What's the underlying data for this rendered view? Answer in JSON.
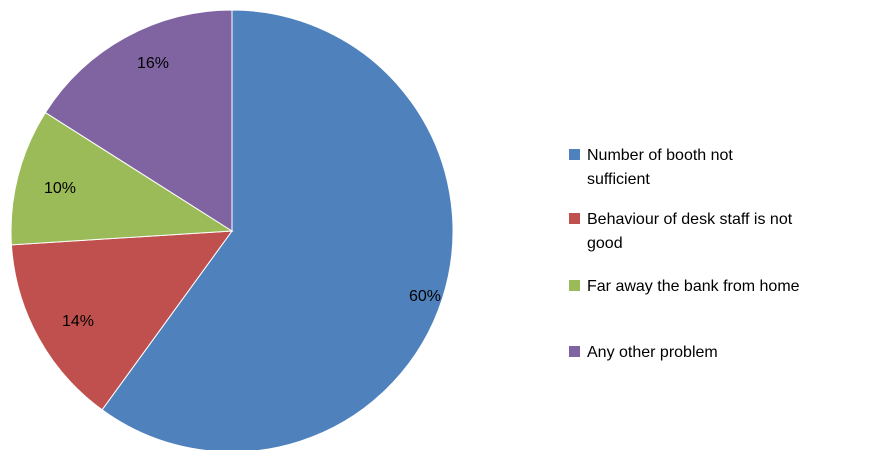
{
  "chart_data": {
    "type": "pie",
    "title": "",
    "slices": [
      {
        "label": "Number of booth not sufficient",
        "value": 60,
        "display": "60%",
        "color": "#4F81BD"
      },
      {
        "label": "Behaviour of desk staff is not good",
        "value": 14,
        "display": "14%",
        "color": "#C0504D"
      },
      {
        "label": "Far away the bank from home",
        "value": 10,
        "display": "10%",
        "color": "#9BBB59"
      },
      {
        "label": "Any other problem",
        "value": 16,
        "display": "16%",
        "color": "#8064A2"
      }
    ],
    "legend": {
      "placement": "right",
      "lines": [
        [
          "Number of booth not",
          "sufficient"
        ],
        [
          "Behaviour of desk staff is not",
          "good"
        ],
        [
          "Far away the bank from home"
        ],
        [
          "Any other problem"
        ]
      ]
    },
    "start_angle_deg": 0,
    "direction": "clockwise"
  }
}
